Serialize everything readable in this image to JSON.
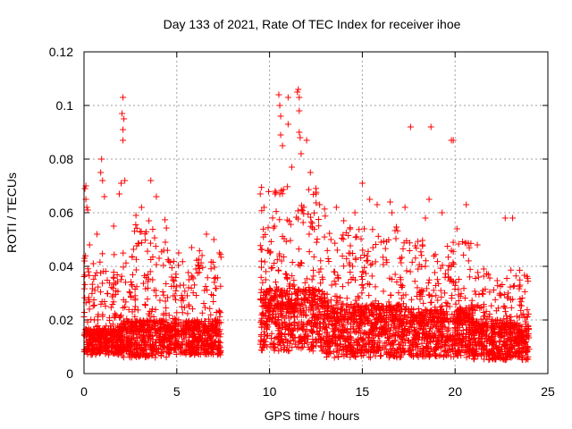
{
  "chart_data": {
    "type": "scatter",
    "title": "Day 133 of 2021, Rate Of TEC Index for receiver ihoe",
    "xlabel": "GPS time / hours",
    "ylabel": "ROTI / TECUs",
    "xlim": [
      0,
      25
    ],
    "ylim": [
      0,
      0.12
    ],
    "x_ticks": [
      "0",
      "5",
      "10",
      "15",
      "20",
      "25"
    ],
    "x_tick_values": [
      0,
      5,
      10,
      15,
      20,
      25
    ],
    "y_ticks": [
      "0",
      "0.02",
      "0.04",
      "0.06",
      "0.08",
      "0.1",
      "0.12"
    ],
    "y_tick_values": [
      0,
      0.02,
      0.04,
      0.06,
      0.08,
      0.1,
      0.12
    ],
    "grid": true,
    "marker": "+",
    "color": "#ff0000",
    "data_gap_hours": [
      7.4,
      9.5
    ],
    "series": [
      {
        "points": [
          [
            0.05,
            0.069
          ],
          [
            0.1,
            0.065
          ],
          [
            0.15,
            0.062
          ],
          [
            0.2,
            0.061
          ],
          [
            0.1,
            0.07
          ],
          [
            0.3,
            0.048
          ],
          [
            0.5,
            0.041
          ],
          [
            0.7,
            0.052
          ],
          [
            0.9,
            0.075
          ],
          [
            0.95,
            0.08
          ],
          [
            1.0,
            0.072
          ],
          [
            1.1,
            0.066
          ],
          [
            1.6,
            0.055
          ],
          [
            1.9,
            0.067
          ],
          [
            2.0,
            0.071
          ],
          [
            2.05,
            0.097
          ],
          [
            2.1,
            0.103
          ],
          [
            2.1,
            0.091
          ],
          [
            2.1,
            0.087
          ],
          [
            2.15,
            0.095
          ],
          [
            2.2,
            0.072
          ],
          [
            2.8,
            0.059
          ],
          [
            3.1,
            0.062
          ],
          [
            3.5,
            0.057
          ],
          [
            3.6,
            0.072
          ],
          [
            3.9,
            0.066
          ],
          [
            4.3,
            0.046
          ],
          [
            5.1,
            0.045
          ],
          [
            5.8,
            0.047
          ],
          [
            6.6,
            0.052
          ],
          [
            7.0,
            0.05
          ],
          [
            7.3,
            0.045
          ],
          [
            9.5,
            0.067
          ],
          [
            9.7,
            0.062
          ],
          [
            10.3,
            0.067
          ],
          [
            10.5,
            0.104
          ],
          [
            10.55,
            0.1
          ],
          [
            10.6,
            0.096
          ],
          [
            10.6,
            0.089
          ],
          [
            10.7,
            0.085
          ],
          [
            11.0,
            0.103
          ],
          [
            11.0,
            0.093
          ],
          [
            11.2,
            0.077
          ],
          [
            11.5,
            0.105
          ],
          [
            11.55,
            0.106
          ],
          [
            11.6,
            0.103
          ],
          [
            11.6,
            0.098
          ],
          [
            11.6,
            0.09
          ],
          [
            11.65,
            0.088
          ],
          [
            11.7,
            0.082
          ],
          [
            12.0,
            0.087
          ],
          [
            12.2,
            0.075
          ],
          [
            12.5,
            0.067
          ],
          [
            12.7,
            0.063
          ],
          [
            13.6,
            0.062
          ],
          [
            14.0,
            0.057
          ],
          [
            14.6,
            0.06
          ],
          [
            15.0,
            0.071
          ],
          [
            15.1,
            0.054
          ],
          [
            15.4,
            0.065
          ],
          [
            15.8,
            0.063
          ],
          [
            16.5,
            0.064
          ],
          [
            16.6,
            0.06
          ],
          [
            17.3,
            0.062
          ],
          [
            17.6,
            0.092
          ],
          [
            18.4,
            0.058
          ],
          [
            18.6,
            0.065
          ],
          [
            18.7,
            0.092
          ],
          [
            19.3,
            0.06
          ],
          [
            19.8,
            0.087
          ],
          [
            19.9,
            0.087
          ],
          [
            20.1,
            0.054
          ],
          [
            20.6,
            0.063
          ],
          [
            21.2,
            0.048
          ],
          [
            22.7,
            0.058
          ],
          [
            23.1,
            0.058
          ],
          [
            23.5,
            0.033
          ]
        ],
        "dense_bands": [
          {
            "x": [
              0.0,
              2.0
            ],
            "y_low": 0.007,
            "y_mid": 0.014,
            "y_high": 0.045
          },
          {
            "x": [
              2.0,
              4.5
            ],
            "y_low": 0.006,
            "y_mid": 0.016,
            "y_high": 0.058
          },
          {
            "x": [
              4.5,
              7.4
            ],
            "y_low": 0.007,
            "y_mid": 0.016,
            "y_high": 0.046
          },
          {
            "x": [
              9.5,
              13.0
            ],
            "y_low": 0.008,
            "y_mid": 0.025,
            "y_high": 0.07
          },
          {
            "x": [
              13.0,
              17.0
            ],
            "y_low": 0.006,
            "y_mid": 0.02,
            "y_high": 0.055
          },
          {
            "x": [
              17.0,
              21.0
            ],
            "y_low": 0.006,
            "y_mid": 0.019,
            "y_high": 0.05
          },
          {
            "x": [
              21.0,
              24.0
            ],
            "y_low": 0.005,
            "y_mid": 0.015,
            "y_high": 0.04
          }
        ]
      }
    ]
  }
}
